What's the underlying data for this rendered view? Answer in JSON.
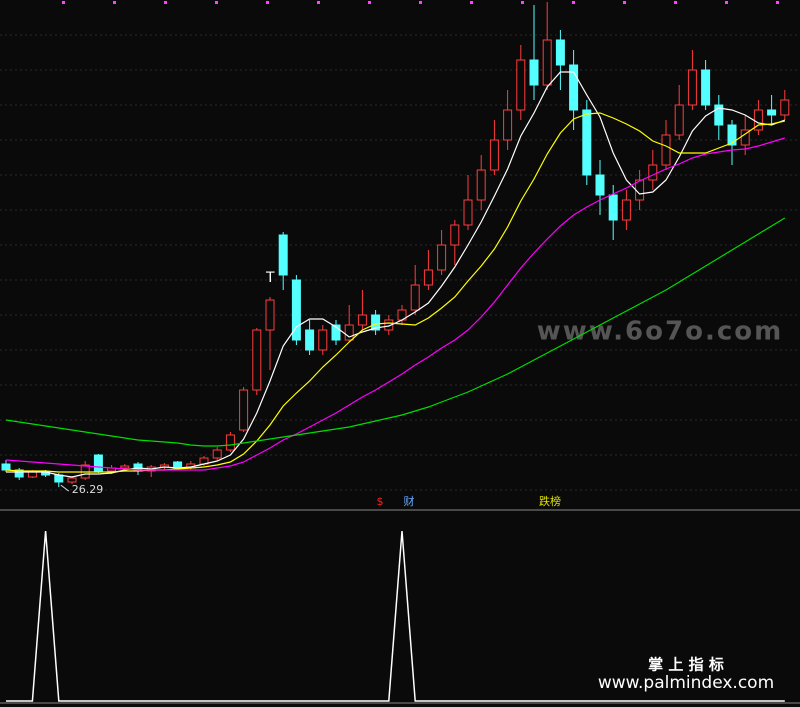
{
  "chart_data": {
    "type": "candlestick",
    "ohlc": [
      [
        28.6,
        29.0,
        27.8,
        28.0
      ],
      [
        28.0,
        28.2,
        27.0,
        27.3
      ],
      [
        27.3,
        28.0,
        27.2,
        27.8
      ],
      [
        27.8,
        28.0,
        27.3,
        27.5
      ],
      [
        27.5,
        27.7,
        26.29,
        26.8
      ],
      [
        26.8,
        27.4,
        26.6,
        27.2
      ],
      [
        27.2,
        28.9,
        27.0,
        28.5
      ],
      [
        29.5,
        29.6,
        27.7,
        27.9
      ],
      [
        27.9,
        28.5,
        27.6,
        28.2
      ],
      [
        28.2,
        28.6,
        27.9,
        28.4
      ],
      [
        28.6,
        28.8,
        27.5,
        27.9
      ],
      [
        27.9,
        28.5,
        27.3,
        28.3
      ],
      [
        28.3,
        28.7,
        28.0,
        28.5
      ],
      [
        28.8,
        28.9,
        28.0,
        28.2
      ],
      [
        28.2,
        28.9,
        28.0,
        28.6
      ],
      [
        28.6,
        29.4,
        28.4,
        29.2
      ],
      [
        29.2,
        30.3,
        29.0,
        30.0
      ],
      [
        30.0,
        31.8,
        29.8,
        31.5
      ],
      [
        32.0,
        36.3,
        31.8,
        36.0
      ],
      [
        36.0,
        42.2,
        35.5,
        42.0
      ],
      [
        42.0,
        45.3,
        38.0,
        45.0
      ],
      [
        51.5,
        51.8,
        46.0,
        47.5
      ],
      [
        47.0,
        47.5,
        40.5,
        41.0
      ],
      [
        42.0,
        43.0,
        39.5,
        40.0
      ],
      [
        40.0,
        42.5,
        39.5,
        42.0
      ],
      [
        42.5,
        43.0,
        40.5,
        41.0
      ],
      [
        41.0,
        44.5,
        40.8,
        42.5
      ],
      [
        42.5,
        46.0,
        42.0,
        43.5
      ],
      [
        43.5,
        44.0,
        41.5,
        42.0
      ],
      [
        42.0,
        43.5,
        41.5,
        43.0
      ],
      [
        43.0,
        44.5,
        42.5,
        44.0
      ],
      [
        44.0,
        48.5,
        43.5,
        46.5
      ],
      [
        46.5,
        50.0,
        46.0,
        48.0
      ],
      [
        48.0,
        52.0,
        47.5,
        50.5
      ],
      [
        50.5,
        53.0,
        48.5,
        52.5
      ],
      [
        52.5,
        57.5,
        52.0,
        55.0
      ],
      [
        55.0,
        59.5,
        54.0,
        58.0
      ],
      [
        58.0,
        63.0,
        57.5,
        61.0
      ],
      [
        61.0,
        66.0,
        60.0,
        64.0
      ],
      [
        64.0,
        70.5,
        63.0,
        69.0
      ],
      [
        69.0,
        74.5,
        65.0,
        66.5
      ],
      [
        66.5,
        74.8,
        66.0,
        71.0
      ],
      [
        71.0,
        72.0,
        66.0,
        68.5
      ],
      [
        68.5,
        70.0,
        62.0,
        64.0
      ],
      [
        64.0,
        65.0,
        56.5,
        57.5
      ],
      [
        57.5,
        59.0,
        53.5,
        55.5
      ],
      [
        55.5,
        56.5,
        51.0,
        53.0
      ],
      [
        53.0,
        56.0,
        52.0,
        55.0
      ],
      [
        55.0,
        58.0,
        54.0,
        57.0
      ],
      [
        57.0,
        60.0,
        56.0,
        58.5
      ],
      [
        58.5,
        63.0,
        58.0,
        61.5
      ],
      [
        61.5,
        66.5,
        61.0,
        64.5
      ],
      [
        64.5,
        70.0,
        64.0,
        68.0
      ],
      [
        68.0,
        69.0,
        64.0,
        64.5
      ],
      [
        64.5,
        65.5,
        61.0,
        62.5
      ],
      [
        62.5,
        63.0,
        58.5,
        60.5
      ],
      [
        60.5,
        63.5,
        59.5,
        62.0
      ],
      [
        62.0,
        65.0,
        61.5,
        64.0
      ],
      [
        64.0,
        65.5,
        62.5,
        63.5
      ],
      [
        63.5,
        66.0,
        63.0,
        65.0
      ]
    ],
    "up_color": "#ff3c3c",
    "down_color": "#54ffff",
    "ylim": [
      24,
      75
    ],
    "series": [
      {
        "color": "#ffffff",
        "values": [
          27.8,
          27.8,
          27.8,
          27.8,
          27.5,
          27.3,
          27.6,
          27.6,
          27.7,
          28.0,
          28.2,
          28.1,
          28.3,
          28.2,
          28.3,
          28.6,
          28.9,
          29.5,
          31.1,
          33.7,
          36.9,
          40.4,
          42.3,
          43.1,
          43.1,
          42.3,
          41.3,
          41.8,
          42.2,
          42.4,
          43.0,
          43.8,
          44.7,
          46.4,
          48.3,
          50.5,
          52.8,
          55.4,
          58.1,
          61.4,
          63.7,
          66.3,
          67.8,
          67.8,
          65.5,
          63.3,
          59.7,
          57.0,
          55.6,
          55.8,
          57.0,
          59.3,
          61.9,
          63.4,
          64.2,
          64.0,
          63.5,
          62.7,
          62.5,
          63.0
        ]
      },
      {
        "color": "#ffff00",
        "values": [
          28.0,
          27.9,
          27.9,
          27.9,
          27.8,
          27.8,
          27.8,
          27.8,
          27.8,
          27.9,
          27.9,
          28.0,
          28.0,
          28.1,
          28.2,
          28.3,
          28.5,
          28.8,
          29.6,
          30.9,
          32.5,
          34.4,
          35.7,
          36.9,
          38.3,
          39.5,
          40.8,
          42.0,
          42.6,
          42.7,
          42.6,
          42.5,
          43.2,
          44.2,
          45.3,
          46.9,
          48.4,
          50.1,
          52.3,
          54.9,
          57.1,
          59.6,
          61.7,
          63.1,
          63.6,
          63.7,
          63.2,
          62.6,
          61.9,
          60.9,
          60.4,
          59.7,
          59.7,
          59.7,
          60.2,
          60.7,
          61.6,
          62.5,
          62.6,
          62.9
        ]
      },
      {
        "color": "#ff00ff",
        "values": [
          29.0,
          28.9,
          28.8,
          28.7,
          28.6,
          28.5,
          28.4,
          28.3,
          28.2,
          28.1,
          28.0,
          28.0,
          28.0,
          28.0,
          28.0,
          28.0,
          28.2,
          28.4,
          28.8,
          29.5,
          30.2,
          31.0,
          31.6,
          32.3,
          33.0,
          33.7,
          34.5,
          35.3,
          36.0,
          36.8,
          37.6,
          38.5,
          39.3,
          40.2,
          41.0,
          42.0,
          43.3,
          44.8,
          46.5,
          48.2,
          49.7,
          51.1,
          52.4,
          53.5,
          54.3,
          55.0,
          55.6,
          56.2,
          56.9,
          57.5,
          58.1,
          58.6,
          59.2,
          59.6,
          59.8,
          60.0,
          60.1,
          60.4,
          60.8,
          61.2
        ]
      },
      {
        "color": "#00dd00",
        "values": [
          33.0,
          32.8,
          32.6,
          32.4,
          32.2,
          32.0,
          31.8,
          31.6,
          31.4,
          31.2,
          31.0,
          30.9,
          30.8,
          30.7,
          30.5,
          30.4,
          30.4,
          30.5,
          30.7,
          30.9,
          31.1,
          31.3,
          31.5,
          31.7,
          31.9,
          32.1,
          32.3,
          32.6,
          32.9,
          33.2,
          33.5,
          33.9,
          34.3,
          34.8,
          35.3,
          35.8,
          36.4,
          37.0,
          37.6,
          38.3,
          39.0,
          39.7,
          40.4,
          41.1,
          41.8,
          42.5,
          43.2,
          43.9,
          44.6,
          45.3,
          46.0,
          46.8,
          47.6,
          48.4,
          49.2,
          50.0,
          50.8,
          51.6,
          52.4,
          53.2
        ]
      }
    ],
    "low_marker": 26.29,
    "annotation": "T",
    "signal_labels": [
      {
        "text": "$",
        "color": "#ff2020"
      },
      {
        "text": "财",
        "color": "#6aa8ff"
      },
      {
        "text": "跌榜",
        "color": "#e0e000"
      }
    ],
    "indicator": {
      "values": [
        0,
        0,
        0,
        1,
        0,
        0,
        0,
        0,
        0,
        0,
        0,
        0,
        0,
        0,
        0,
        0,
        0,
        0,
        0,
        0,
        0,
        0,
        0,
        0,
        0,
        0,
        0,
        0,
        0,
        0,
        1,
        0,
        0,
        0,
        0,
        0,
        0,
        0,
        0,
        0,
        0,
        0,
        0,
        0,
        0,
        0,
        0,
        0,
        0,
        0,
        0,
        0,
        0,
        0,
        0,
        0,
        0,
        0,
        0,
        0
      ],
      "ylim": [
        0,
        1
      ],
      "color": "#ffffff"
    }
  },
  "watermark": "www.6o7o.com",
  "footer": {
    "name": "掌 上 指 标",
    "url": "www.palmindex.com"
  }
}
